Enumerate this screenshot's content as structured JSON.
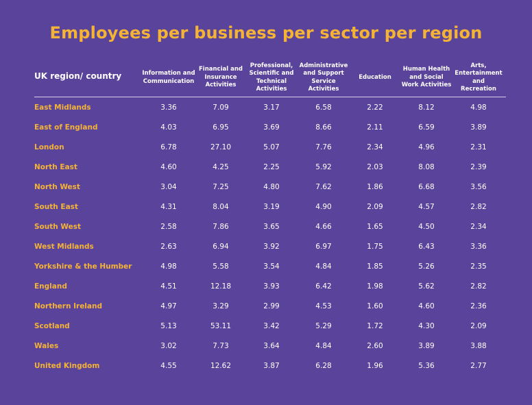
{
  "page": {
    "title": "Employees per business per sector per region",
    "colors": {
      "background": "#5a449b",
      "accent": "#f5b335",
      "text": "#ffffff"
    }
  },
  "chart_data": {
    "type": "table",
    "title": "Employees per business per sector per region",
    "row_header": "UK region/ country",
    "columns": [
      "Information and Communication",
      "Financial and Insurance Activities",
      "Professional, Scientific and Technical Activities",
      "Administrative and Support Service Activities",
      "Education",
      "Human Health and Social Work Activities",
      "Arts, Entertainment and Recreation"
    ],
    "rows": [
      {
        "region": "East Midlands",
        "values": [
          "3.36",
          "7.09",
          "3.17",
          "6.58",
          "2.22",
          "8.12",
          "4.98"
        ]
      },
      {
        "region": "East of England",
        "values": [
          "4.03",
          "6.95",
          "3.69",
          "8.66",
          "2.11",
          "6.59",
          "3.89"
        ]
      },
      {
        "region": "London",
        "values": [
          "6.78",
          "27.10",
          "5.07",
          "7.76",
          "2.34",
          "4.96",
          "2.31"
        ]
      },
      {
        "region": "North East",
        "values": [
          "4.60",
          "4.25",
          "2.25",
          "5.92",
          "2.03",
          "8.08",
          "2.39"
        ]
      },
      {
        "region": "North West",
        "values": [
          "3.04",
          "7.25",
          "4.80",
          "7.62",
          "1.86",
          "6.68",
          "3.56"
        ]
      },
      {
        "region": "South East",
        "values": [
          "4.31",
          "8.04",
          "3.19",
          "4.90",
          "2.09",
          "4.57",
          "2.82"
        ]
      },
      {
        "region": "South West",
        "values": [
          "2.58",
          "7.86",
          "3.65",
          "4.66",
          "1.65",
          "4.50",
          "2.34"
        ]
      },
      {
        "region": "West Midlands",
        "values": [
          "2.63",
          "6.94",
          "3.92",
          "6.97",
          "1.75",
          "6.43",
          "3.36"
        ]
      },
      {
        "region": "Yorkshire & the Humber",
        "values": [
          "4.98",
          "5.58",
          "3.54",
          "4.84",
          "1.85",
          "5.26",
          "2.35"
        ]
      },
      {
        "region": "England",
        "values": [
          "4.51",
          "12.18",
          "3.93",
          "6.42",
          "1.98",
          "5.62",
          "2.82"
        ]
      },
      {
        "region": "Northern Ireland",
        "values": [
          "4.97",
          "3.29",
          "2.99",
          "4.53",
          "1.60",
          "4.60",
          "2.36"
        ]
      },
      {
        "region": "Scotland",
        "values": [
          "5.13",
          "53.11",
          "3.42",
          "5.29",
          "1.72",
          "4.30",
          "2.09"
        ]
      },
      {
        "region": "Wales",
        "values": [
          "3.02",
          "7.73",
          "3.64",
          "4.84",
          "2.60",
          "3.89",
          "3.88"
        ]
      },
      {
        "region": "United Kingdom",
        "values": [
          "4.55",
          "12.62",
          "3.87",
          "6.28",
          "1.96",
          "5.36",
          "2.77"
        ]
      }
    ]
  }
}
